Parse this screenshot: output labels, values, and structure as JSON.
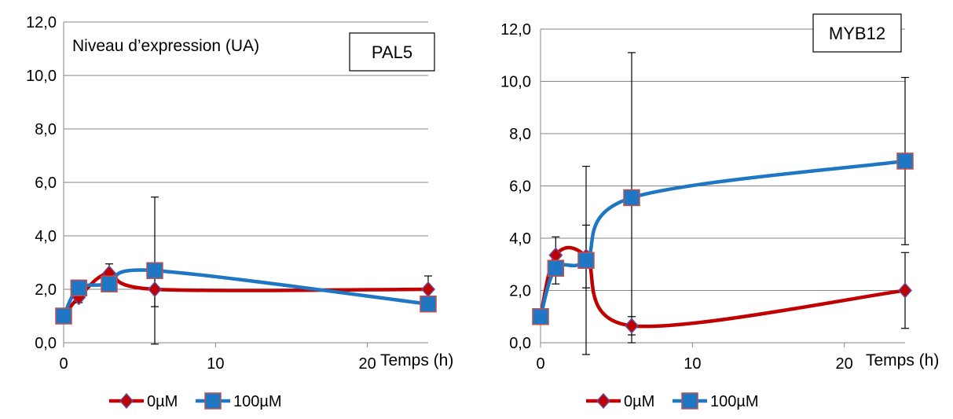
{
  "colors": {
    "series_0": "#c00000",
    "series_100": "#1f77c4",
    "marker_edge_0": "#6a4a9a",
    "marker_edge_100": "#c0504d",
    "grid": "#868686"
  },
  "legend_labels": [
    "0µM",
    "100µM"
  ],
  "chart_data": [
    {
      "type": "line",
      "gene_label": "PAL5",
      "y_annotation": "Niveau d’expression (UA)",
      "xlabel": "Temps (h)",
      "xlim": [
        0,
        24
      ],
      "ylim": [
        0,
        12
      ],
      "x_ticks": [
        0,
        10,
        20
      ],
      "y_ticks": [
        "0,0",
        "2,0",
        "4,0",
        "6,0",
        "8,0",
        "10,0",
        "12,0"
      ],
      "legend": "bottom",
      "grid": true,
      "x": [
        0,
        1,
        3,
        6,
        24
      ],
      "series": [
        {
          "name": "0µM",
          "marker": "diamond",
          "values": [
            1.0,
            1.7,
            2.6,
            2.0,
            2.0
          ],
          "error": [
            0,
            0.2,
            0.35,
            0.65,
            0.5
          ]
        },
        {
          "name": "100µM",
          "marker": "square",
          "values": [
            1.0,
            2.05,
            2.2,
            2.7,
            1.45
          ],
          "error": [
            0,
            0.1,
            0.2,
            2.75,
            0
          ]
        }
      ]
    },
    {
      "type": "line",
      "gene_label": "MYB12",
      "y_annotation": "",
      "xlabel": "Temps (h)",
      "xlim": [
        0,
        24
      ],
      "ylim": [
        0,
        12
      ],
      "x_ticks": [
        0,
        10,
        20
      ],
      "y_ticks": [
        "0,0",
        "2,0",
        "4,0",
        "6,0",
        "8,0",
        "10,0",
        "12,0"
      ],
      "legend": "bottom",
      "grid": true,
      "x": [
        0,
        1,
        3,
        6,
        24
      ],
      "series": [
        {
          "name": "0µM",
          "marker": "diamond",
          "values": [
            1.0,
            3.35,
            3.3,
            0.65,
            2.0
          ],
          "error": [
            0,
            0.7,
            1.2,
            0.35,
            1.45
          ]
        },
        {
          "name": "100µM",
          "marker": "square",
          "values": [
            1.0,
            2.85,
            3.15,
            5.55,
            6.95
          ],
          "error": [
            0,
            0.6,
            3.6,
            5.55,
            3.2
          ]
        }
      ]
    }
  ]
}
